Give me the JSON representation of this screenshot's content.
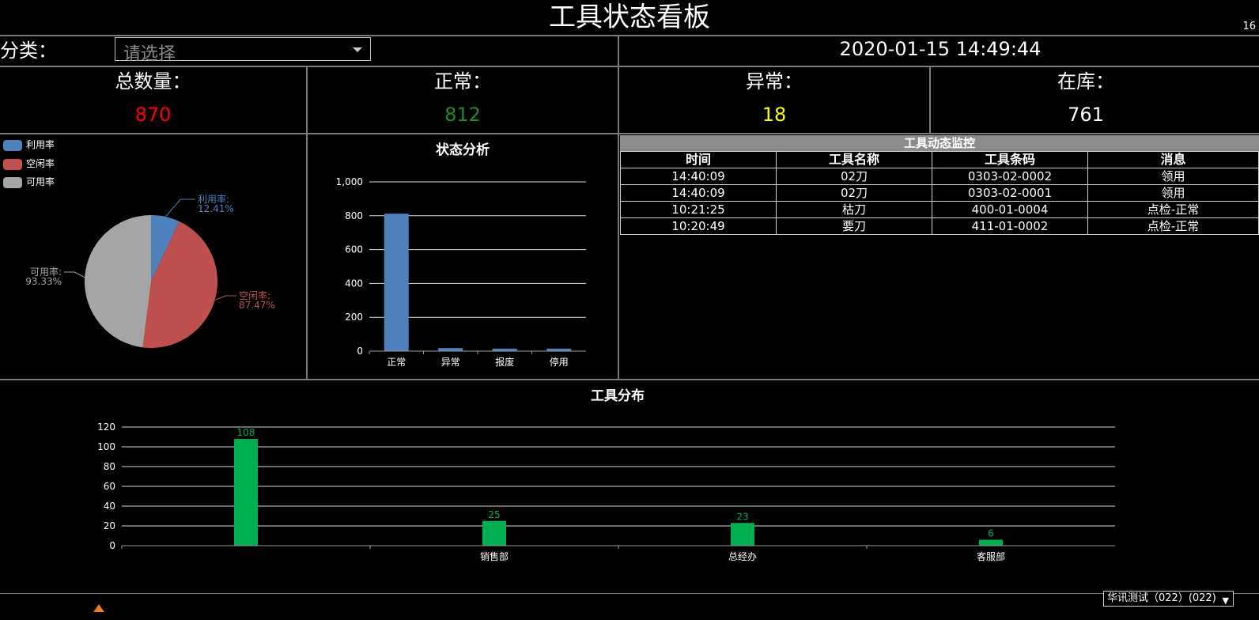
{
  "header": {
    "title": "工具状态看板",
    "corner_number": "16"
  },
  "filter": {
    "label": "分类：",
    "placeholder": "请选择"
  },
  "datetime": "2020-01-15 14:49:44",
  "stats": {
    "total": {
      "label": "总数量：",
      "value": "870",
      "color": "#ff0000"
    },
    "normal": {
      "label": "正常：",
      "value": "812",
      "color": "#1f8c1f"
    },
    "abnormal": {
      "label": "异常：",
      "value": "18",
      "color": "#ffff00"
    },
    "in_stock": {
      "label": "在库：",
      "value": "761",
      "color": "#ffffff"
    }
  },
  "chart_data": [
    {
      "type": "pie",
      "title": "",
      "legend": [
        "利用率",
        "空闲率",
        "可用率"
      ],
      "slices": [
        {
          "name": "利用率",
          "label": "利用率:",
          "percent_label": "12.41%",
          "value": 7,
          "color": "#4f81bd"
        },
        {
          "name": "空闲率",
          "label": "空闲率:",
          "percent_label": "87.47%",
          "value": 45,
          "color": "#c0504d"
        },
        {
          "name": "可用率",
          "label": "可用率:",
          "percent_label": "93.33%",
          "value": 48,
          "color": "#a5a5a5"
        }
      ]
    },
    {
      "type": "bar",
      "title": "状态分析",
      "categories": [
        "正常",
        "异常",
        "报废",
        "停用"
      ],
      "values": [
        812,
        18,
        15,
        15
      ],
      "ylim": [
        0,
        1000
      ],
      "yticks": [
        "0",
        "200",
        "400",
        "600",
        "800",
        "1,000"
      ],
      "color": "#4f81bd"
    },
    {
      "type": "bar",
      "title": "工具分布",
      "categories": [
        "",
        "销售部",
        "总经办",
        "客服部"
      ],
      "values": [
        108,
        25,
        23,
        6
      ],
      "value_labels": [
        "108",
        "25",
        "23",
        "6"
      ],
      "ylim": [
        0,
        120
      ],
      "yticks": [
        "0",
        "20",
        "40",
        "60",
        "80",
        "100",
        "120"
      ],
      "color": "#00b050"
    }
  ],
  "monitor": {
    "title": "工具动态监控",
    "columns": [
      "时间",
      "工具名称",
      "工具条码",
      "消息"
    ],
    "rows": [
      [
        "14:40:09",
        "02刀",
        "0303-02-0002",
        "领用"
      ],
      [
        "14:40:09",
        "02刀",
        "0303-02-0001",
        "领用"
      ],
      [
        "10:21:25",
        "枯刀",
        "400-01-0004",
        "点检-正常"
      ],
      [
        "10:20:49",
        "要刀",
        "411-01-0002",
        "点检-正常"
      ]
    ]
  },
  "footer": {
    "user_select": "华讯测试（022）(022)",
    "icon": "fox-logo-icon"
  }
}
